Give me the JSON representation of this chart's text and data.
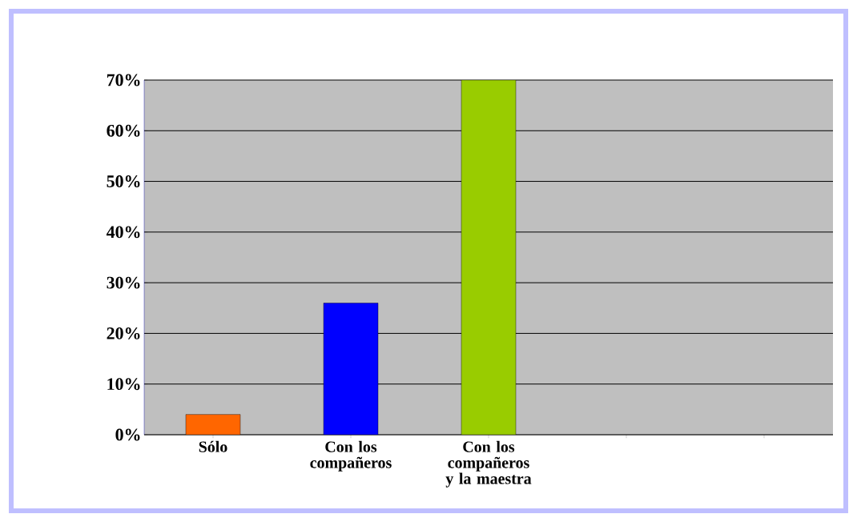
{
  "chart_data": {
    "type": "bar",
    "categories": [
      "Sólo",
      "Con los compañeros",
      "Con los compañeros y la maestra",
      null,
      null
    ],
    "values": [
      4,
      26,
      70,
      null,
      null
    ],
    "colors": [
      "#ff6600",
      "#0000ff",
      "#99cc00",
      "#999999",
      "#999999"
    ],
    "ylim": [
      0,
      70
    ],
    "yticks": [
      {
        "value": 0,
        "label": "0%"
      },
      {
        "value": 10,
        "label": "10%"
      },
      {
        "value": 20,
        "label": "20%"
      },
      {
        "value": 30,
        "label": "30%"
      },
      {
        "value": 40,
        "label": "40%"
      },
      {
        "value": 50,
        "label": "50%"
      },
      {
        "value": 60,
        "label": "60%"
      },
      {
        "value": 70,
        "label": "70%"
      }
    ],
    "grid": "y"
  }
}
